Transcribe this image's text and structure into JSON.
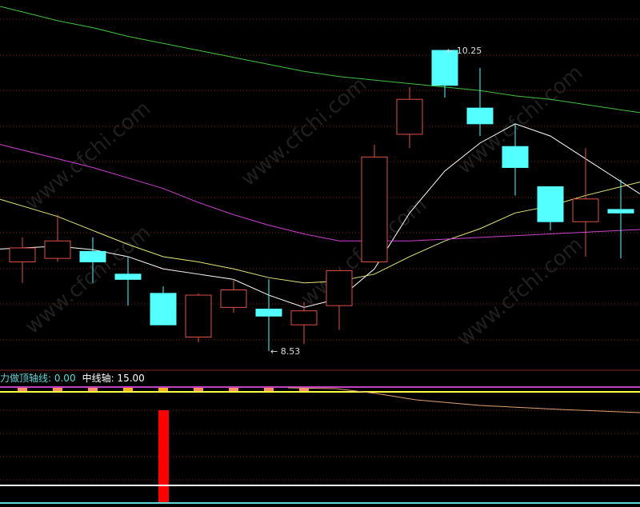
{
  "chart_data": {
    "type": "candlestick",
    "title": "",
    "price_range": [
      8.53,
      10.25
    ],
    "grid": true,
    "annotations": {
      "high_label": "10.25",
      "low_label": "8.53",
      "high_index": 12,
      "low_index": 7
    },
    "candles": [
      {
        "o": 9.04,
        "h": 9.18,
        "l": 8.92,
        "c": 9.12
      },
      {
        "o": 9.06,
        "h": 9.31,
        "l": 9.04,
        "c": 9.16
      },
      {
        "o": 9.1,
        "h": 9.18,
        "l": 8.92,
        "c": 9.04
      },
      {
        "o": 8.97,
        "h": 9.07,
        "l": 8.79,
        "c": 8.94
      },
      {
        "o": 8.86,
        "h": 8.9,
        "l": 8.68,
        "c": 8.68
      },
      {
        "o": 8.61,
        "h": 8.86,
        "l": 8.58,
        "c": 8.85
      },
      {
        "o": 8.78,
        "h": 8.94,
        "l": 8.75,
        "c": 8.88
      },
      {
        "o": 8.77,
        "h": 8.94,
        "l": 8.53,
        "c": 8.73
      },
      {
        "o": 8.68,
        "h": 8.81,
        "l": 8.57,
        "c": 8.76
      },
      {
        "o": 8.79,
        "h": 8.99,
        "l": 8.65,
        "c": 8.99
      },
      {
        "o": 9.04,
        "h": 9.71,
        "l": 9.04,
        "c": 9.64
      },
      {
        "o": 9.77,
        "h": 10.04,
        "l": 9.69,
        "c": 9.97
      },
      {
        "o": 10.25,
        "h": 10.25,
        "l": 9.98,
        "c": 10.05
      },
      {
        "o": 9.92,
        "h": 10.15,
        "l": 9.76,
        "c": 9.83
      },
      {
        "o": 9.7,
        "h": 9.83,
        "l": 9.42,
        "c": 9.58
      },
      {
        "o": 9.47,
        "h": 9.47,
        "l": 9.22,
        "c": 9.27
      },
      {
        "o": 9.27,
        "h": 9.69,
        "l": 9.07,
        "c": 9.4
      },
      {
        "o": 9.34,
        "h": 9.51,
        "l": 9.06,
        "c": 9.32
      }
    ],
    "moving_averages": [
      {
        "color": "#ffffff",
        "values": [
          9.12,
          9.13,
          9.11,
          9.07,
          9.0,
          8.97,
          8.94,
          8.85,
          8.78,
          8.83,
          9.0,
          9.32,
          9.56,
          9.72,
          9.83,
          9.76,
          9.63,
          9.5
        ]
      },
      {
        "color": "#e8e87a",
        "values": [
          9.36,
          9.3,
          9.22,
          9.14,
          9.07,
          9.04,
          9.0,
          8.95,
          8.92,
          8.93,
          8.97,
          9.07,
          9.16,
          9.23,
          9.32,
          9.36,
          9.42,
          9.47
        ]
      },
      {
        "color": "#d040d0",
        "values": [
          9.68,
          9.63,
          9.58,
          9.52,
          9.46,
          9.38,
          9.31,
          9.25,
          9.2,
          9.16,
          9.16,
          9.16,
          9.17,
          9.18,
          9.19,
          9.2,
          9.21,
          9.22
        ]
      },
      {
        "color": "#40c040",
        "values": [
          10.47,
          10.42,
          10.38,
          10.33,
          10.29,
          10.25,
          10.21,
          10.17,
          10.13,
          10.1,
          10.08,
          10.06,
          10.04,
          10.02,
          9.99,
          9.97,
          9.94,
          9.91
        ]
      }
    ],
    "colors": {
      "up": "#e0504a",
      "down": "#54ffff",
      "grid": "#7a1f1f"
    },
    "indicator": {
      "label1": "力做顶轴线: 0.00",
      "label2": "中线轴: 15.00",
      "signal_bar_index": 4,
      "marker_indices": [
        0,
        1,
        2,
        3,
        4,
        5,
        6,
        7,
        8
      ],
      "colors": {
        "signal": "#ff0000",
        "marker": "#ff9060",
        "upper_line": "#c040c0",
        "yellow_line": "#ffff40",
        "white_line": "#ffffff",
        "bottom_line": "#5fd7d7",
        "trend": "#e0a070"
      }
    }
  },
  "watermark": "www.cfchi.com"
}
